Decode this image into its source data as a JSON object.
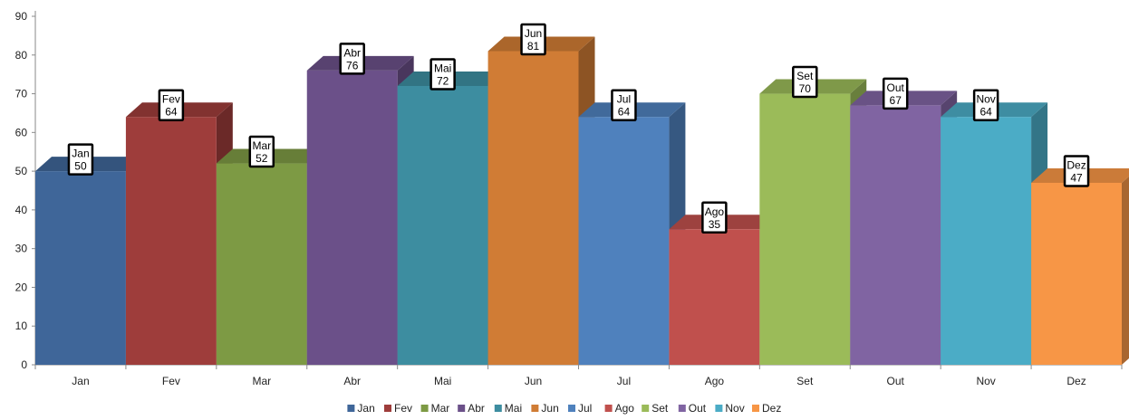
{
  "chart_data": {
    "type": "bar",
    "categories": [
      "Jan",
      "Fev",
      "Mar",
      "Abr",
      "Mai",
      "Jun",
      "Jul",
      "Ago",
      "Set",
      "Out",
      "Nov",
      "Dez"
    ],
    "values": [
      50,
      64,
      52,
      76,
      72,
      81,
      64,
      35,
      70,
      67,
      64,
      47
    ],
    "colors": [
      "#3f6699",
      "#9e3d3b",
      "#7d9a44",
      "#6b5089",
      "#3d8da0",
      "#d07c35",
      "#4f81bd",
      "#c0504d",
      "#9bbb59",
      "#8064a2",
      "#4bacc6",
      "#f79646"
    ],
    "ylim": [
      0,
      90
    ],
    "yticks": [
      0,
      10,
      20,
      30,
      40,
      50,
      60,
      70,
      80,
      90
    ],
    "legend_position": "bottom",
    "grid": false,
    "data_labels": true,
    "style": "3d-bar"
  }
}
